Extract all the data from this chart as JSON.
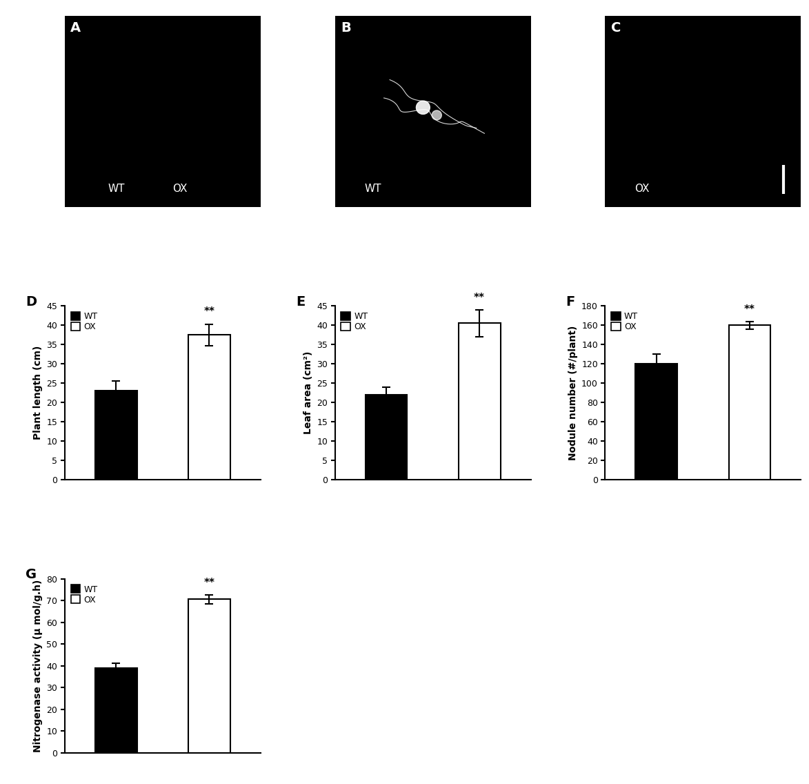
{
  "panels_abc": {
    "A": {
      "label": "A",
      "text_labels": [
        [
          "WT",
          0.22
        ],
        [
          "OX",
          0.55
        ]
      ]
    },
    "B": {
      "label": "B",
      "text_labels": [
        [
          "WT",
          0.15
        ]
      ]
    },
    "C": {
      "label": "C",
      "text_labels": [
        [
          "OX",
          0.15
        ]
      ]
    }
  },
  "panel_D": {
    "label": "D",
    "values": [
      23.0,
      37.5
    ],
    "errors": [
      2.5,
      2.8
    ],
    "colors": [
      "#000000",
      "#ffffff"
    ],
    "edgecolors": [
      "#000000",
      "#000000"
    ],
    "ylabel": "Plant length (cm)",
    "ylim": [
      0,
      45
    ],
    "yticks": [
      0,
      5,
      10,
      15,
      20,
      25,
      30,
      35,
      40,
      45
    ],
    "sig_text": "**"
  },
  "panel_E": {
    "label": "E",
    "values": [
      22.0,
      40.5
    ],
    "errors": [
      2.0,
      3.5
    ],
    "colors": [
      "#000000",
      "#ffffff"
    ],
    "edgecolors": [
      "#000000",
      "#000000"
    ],
    "ylabel": "Leaf area (cm²)",
    "ylim": [
      0,
      45
    ],
    "yticks": [
      0,
      5,
      10,
      15,
      20,
      25,
      30,
      35,
      40,
      45
    ],
    "sig_text": "**"
  },
  "panel_F": {
    "label": "F",
    "values": [
      120.0,
      160.0
    ],
    "errors": [
      10.0,
      4.0
    ],
    "colors": [
      "#000000",
      "#ffffff"
    ],
    "edgecolors": [
      "#000000",
      "#000000"
    ],
    "ylabel": "Nodule number (#/plant)",
    "ylim": [
      0,
      180
    ],
    "yticks": [
      0,
      20,
      40,
      60,
      80,
      100,
      120,
      140,
      160,
      180
    ],
    "sig_text": "**"
  },
  "panel_G": {
    "label": "G",
    "values": [
      39.0,
      70.5
    ],
    "errors": [
      2.0,
      2.0
    ],
    "colors": [
      "#000000",
      "#ffffff"
    ],
    "edgecolors": [
      "#000000",
      "#000000"
    ],
    "ylabel": "Nitrogenase activity (μ mol/g.h)",
    "ylim": [
      0,
      80
    ],
    "yticks": [
      0,
      10,
      20,
      30,
      40,
      50,
      60,
      70,
      80
    ],
    "sig_text": "**"
  },
  "legend_wt_color": "#000000",
  "legend_ox_color": "#ffffff",
  "legend_ox_edgecolor": "#000000",
  "background_color": "#ffffff",
  "fontsize": 10,
  "label_fontsize": 14,
  "bar_width": 0.45
}
